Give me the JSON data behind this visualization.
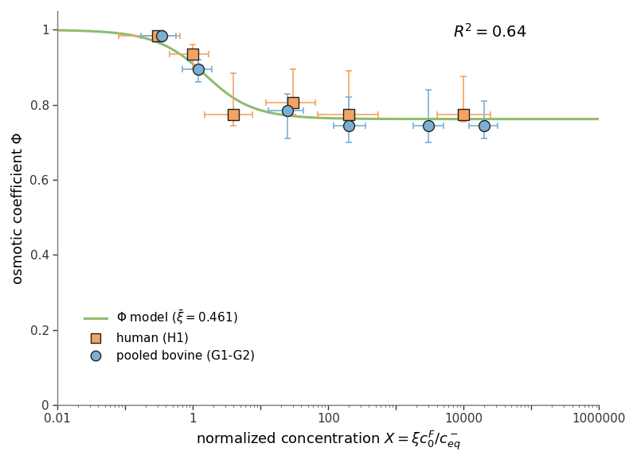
{
  "xlabel": "normalized concentration $X = \\xi c_0^F / c_{eq}^-$",
  "ylabel": "osmotic coefficient Φ",
  "xlim": [
    0.01,
    1000000
  ],
  "ylim": [
    0,
    1.05
  ],
  "r2_text": "$R^2 = 0.64$",
  "xi_bar": 0.461,
  "Phi_inf": 0.762,
  "human_x": [
    0.3,
    1.0,
    4.0,
    30,
    200,
    10000
  ],
  "human_y": [
    0.985,
    0.935,
    0.775,
    0.805,
    0.775,
    0.775
  ],
  "human_xerr_lo": [
    0.22,
    0.55,
    2.5,
    18,
    130,
    6000
  ],
  "human_xerr_hi": [
    0.35,
    0.7,
    3.5,
    35,
    350,
    15000
  ],
  "human_yerr_lo": [
    0.01,
    0.04,
    0.03,
    0.03,
    0.025,
    0.02
  ],
  "human_yerr_hi": [
    0.005,
    0.025,
    0.11,
    0.09,
    0.115,
    0.1
  ],
  "bovine_x": [
    0.35,
    1.2,
    25,
    200,
    3000,
    20000
  ],
  "bovine_y": [
    0.985,
    0.895,
    0.785,
    0.745,
    0.745,
    0.745
  ],
  "bovine_xerr_lo": [
    0.18,
    0.5,
    12,
    80,
    1200,
    8000
  ],
  "bovine_xerr_hi": [
    0.22,
    0.7,
    18,
    150,
    2000,
    12000
  ],
  "bovine_yerr_lo": [
    0.008,
    0.035,
    0.075,
    0.045,
    0.045,
    0.035
  ],
  "bovine_yerr_hi": [
    0.004,
    0.025,
    0.045,
    0.075,
    0.095,
    0.065
  ],
  "human_color": "#F4A460",
  "bovine_color": "#7bafd4",
  "curve_color": "#8fbc6f",
  "background_color": "#ffffff"
}
